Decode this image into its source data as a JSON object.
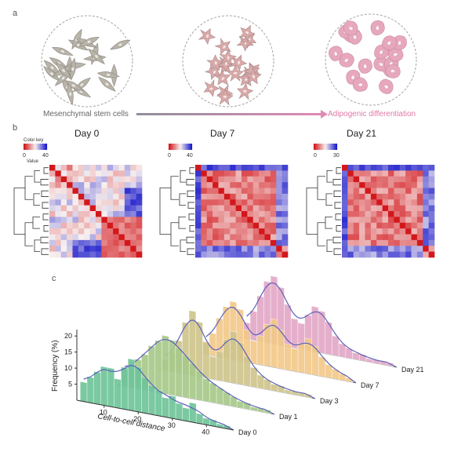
{
  "panel_a": {
    "label": "a",
    "left_caption": "Mesenchymal stem cells",
    "right_caption": "Adipogenic differentiation",
    "colors": {
      "stem": "#b9b4aa",
      "intermediate": "#d9a9a9",
      "adipocyte": "#e7a8bd",
      "arrow_left": "#8f8f9a",
      "arrow_right": "#e08ab5"
    }
  },
  "panel_b": {
    "label": "b",
    "color_key_title": "Color key",
    "value_label": "Value",
    "heatmaps": [
      {
        "title": "Day 0",
        "scale_min": "0",
        "scale_max": "40"
      },
      {
        "title": "Day 7",
        "scale_min": "0",
        "scale_max": "40"
      },
      {
        "title": "Day 21",
        "scale_min": "0",
        "scale_max": "30"
      }
    ],
    "colors": {
      "low": "#d3181c",
      "mid": "#f7f0f0",
      "high": "#1a1acb"
    }
  },
  "panel_c": {
    "label": "c",
    "ylabel": "Frequency (%)",
    "xlabel": "Cell-to-cell distance",
    "y_ticks": [
      "5",
      "10",
      "15",
      "20"
    ],
    "x_ticks": [
      "10",
      "20",
      "30",
      "40"
    ],
    "day_labels": [
      "Day 0",
      "Day 1",
      "Day 3",
      "Day 7",
      "Day 21"
    ],
    "curve_color": "#5b63b8"
  },
  "chart_data": {
    "type": "bar",
    "xlabel": "Cell-to-cell distance",
    "ylabel": "Frequency (%)",
    "ylim": [
      0,
      22
    ],
    "x": [
      4,
      6,
      8,
      10,
      12,
      14,
      16,
      18,
      20,
      22,
      24,
      26,
      28,
      30,
      32,
      34,
      36,
      38,
      40,
      42,
      44,
      46
    ],
    "series": [
      {
        "name": "Day 0",
        "color": "#6fc59a",
        "values": [
          6,
          8,
          10,
          12,
          12,
          9,
          13,
          16,
          14,
          11,
          9,
          8,
          6,
          7,
          5,
          4,
          6,
          3,
          2,
          2,
          1,
          1
        ]
      },
      {
        "name": "Day 1",
        "color": "#a8c98a",
        "values": [
          5,
          7,
          9,
          11,
          14,
          16,
          18,
          17,
          15,
          13,
          11,
          9,
          7,
          6,
          5,
          4,
          3,
          2,
          2,
          1,
          1,
          1
        ]
      },
      {
        "name": "Day 3",
        "color": "#cfc58c",
        "values": [
          3,
          6,
          10,
          16,
          20,
          17,
          11,
          7,
          9,
          13,
          16,
          13,
          9,
          6,
          4,
          3,
          2,
          2,
          1,
          1,
          1,
          1
        ]
      },
      {
        "name": "Day 7",
        "color": "#f2c98a",
        "values": [
          4,
          7,
          12,
          16,
          18,
          16,
          10,
          7,
          9,
          13,
          15,
          12,
          8,
          7,
          9,
          11,
          9,
          6,
          4,
          3,
          2,
          1
        ]
      },
      {
        "name": "Day 21",
        "color": "#e3a9c8",
        "values": [
          5,
          9,
          14,
          19,
          21,
          18,
          13,
          9,
          8,
          11,
          14,
          13,
          10,
          6,
          4,
          3,
          2,
          2,
          1,
          1,
          1,
          1
        ]
      }
    ]
  }
}
